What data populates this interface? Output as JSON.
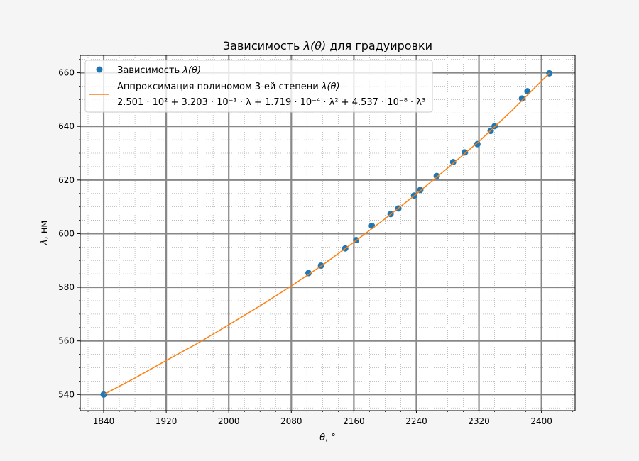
{
  "chart_data": {
    "type": "scatter",
    "title_prefix": "Зависимость ",
    "title_math": "λ(θ)",
    "title_suffix": " для градуировки",
    "xlabel_math": "θ",
    "xlabel_unit": ", °",
    "ylabel_math": "λ",
    "ylabel_unit": ", нм",
    "xlim": [
      1810,
      2443
    ],
    "ylim": [
      534,
      666.5
    ],
    "xticks": [
      "1840",
      "1920",
      "2000",
      "2080",
      "2160",
      "2240",
      "2320",
      "2400"
    ],
    "yticks": [
      "540",
      "560",
      "580",
      "600",
      "620",
      "640",
      "660"
    ],
    "grid": true,
    "legend_position": "top-left",
    "series": [
      {
        "name_prefix": "Зависимость ",
        "name_math": "λ(θ)",
        "kind": "points",
        "color": "#1f77b4",
        "points": [
          [
            1840,
            540.0
          ],
          [
            2102,
            585.3
          ],
          [
            2118,
            588.1
          ],
          [
            2149,
            594.5
          ],
          [
            2163,
            597.6
          ],
          [
            2183,
            602.9
          ],
          [
            2207,
            607.3
          ],
          [
            2217,
            609.4
          ],
          [
            2237,
            614.2
          ],
          [
            2245,
            616.3
          ],
          [
            2266,
            621.5
          ],
          [
            2287,
            626.7
          ],
          [
            2302,
            630.3
          ],
          [
            2318,
            633.4
          ],
          [
            2335,
            638.3
          ],
          [
            2340,
            640.1
          ],
          [
            2375,
            650.4
          ],
          [
            2382,
            653.1
          ],
          [
            2410,
            659.8
          ]
        ]
      },
      {
        "name_prefix": "Аппроксимация полиномом 3-ей степени ",
        "name_math": "λ(θ)",
        "formula": "2.501 · 10² + 3.203 · 10⁻¹ · λ + 1.719 · 10⁻⁴ · λ² + 4.537 · 10⁻⁸ · λ³",
        "kind": "line",
        "color": "#ff7f0e",
        "points": [
          [
            1840,
            540.0
          ],
          [
            1880,
            546.2
          ],
          [
            1920,
            552.7
          ],
          [
            1960,
            559.1
          ],
          [
            2000,
            566.0
          ],
          [
            2040,
            573.1
          ],
          [
            2080,
            580.5
          ],
          [
            2120,
            588.3
          ],
          [
            2160,
            596.8
          ],
          [
            2200,
            605.6
          ],
          [
            2240,
            614.8
          ],
          [
            2280,
            624.5
          ],
          [
            2320,
            634.4
          ],
          [
            2360,
            645.3
          ],
          [
            2410,
            659.8
          ]
        ]
      }
    ]
  }
}
